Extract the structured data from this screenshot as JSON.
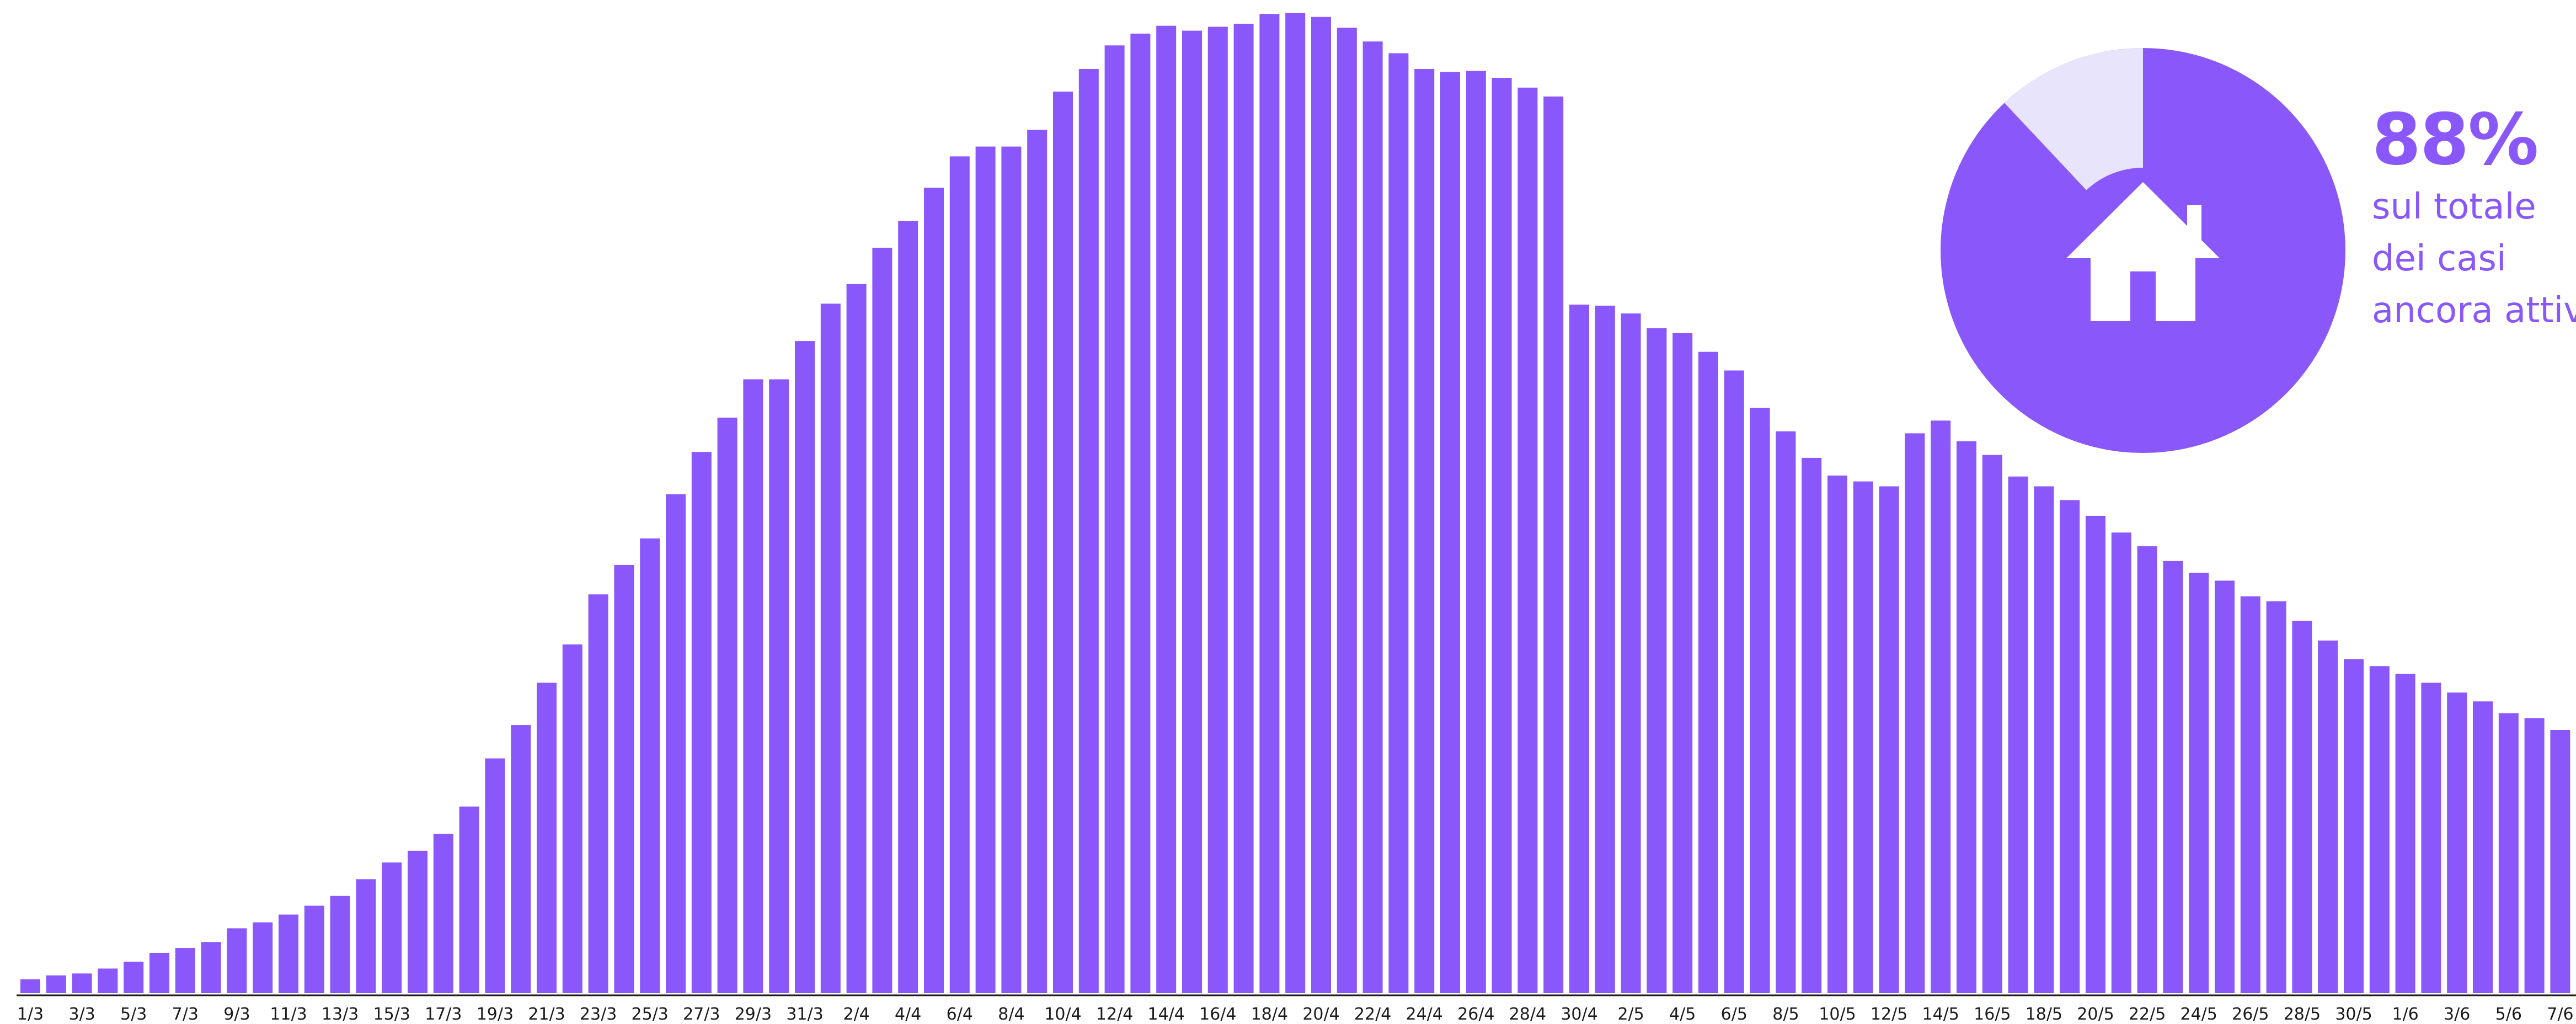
{
  "chart_data": {
    "type": "bar",
    "title": "",
    "xlabel": "",
    "ylabel": "",
    "color": "#8957fa",
    "axis_color": "#1a1a1a",
    "ylim": [
      0,
      1
    ],
    "categories": [
      "1/3",
      "2/3",
      "3/3",
      "4/3",
      "5/3",
      "6/3",
      "7/3",
      "8/3",
      "9/3",
      "10/3",
      "11/3",
      "12/3",
      "13/3",
      "14/3",
      "15/3",
      "16/3",
      "17/3",
      "18/3",
      "19/3",
      "20/3",
      "21/3",
      "22/3",
      "23/3",
      "24/3",
      "25/3",
      "26/3",
      "27/3",
      "28/3",
      "29/3",
      "30/3",
      "31/3",
      "1/4",
      "2/4",
      "3/4",
      "4/4",
      "5/4",
      "6/4",
      "7/4",
      "8/4",
      "9/4",
      "10/4",
      "11/4",
      "12/4",
      "13/4",
      "14/4",
      "15/4",
      "16/4",
      "17/4",
      "18/4",
      "19/4",
      "20/4",
      "21/4",
      "22/4",
      "23/4",
      "24/4",
      "25/4",
      "26/4",
      "27/4",
      "28/4",
      "29/4",
      "30/4",
      "1/5",
      "2/5",
      "3/5",
      "4/5",
      "5/5",
      "6/5",
      "7/5",
      "8/5",
      "9/5",
      "10/5",
      "11/5",
      "12/5",
      "13/5",
      "14/5",
      "15/5",
      "16/5",
      "17/5",
      "18/5",
      "19/5",
      "20/5",
      "21/5",
      "22/5",
      "23/5",
      "24/5",
      "25/5",
      "26/5",
      "27/5",
      "28/5",
      "29/5",
      "30/5",
      "31/5",
      "1/6",
      "2/6",
      "3/6",
      "4/6",
      "5/6",
      "6/6",
      "7/6",
      "8/6"
    ],
    "tick_labels": [
      "1/3",
      "3/3",
      "5/3",
      "7/3",
      "9/3",
      "11/3",
      "13/3",
      "15/3",
      "17/3",
      "19/3",
      "21/3",
      "23/3",
      "25/3",
      "27/3",
      "29/3",
      "31/3",
      "2/4",
      "4/4",
      "6/4",
      "8/4",
      "10/4",
      "12/4",
      "14/4",
      "16/4",
      "18/4",
      "20/4",
      "22/4",
      "24/4",
      "26/4",
      "28/4",
      "30/4",
      "2/5",
      "4/5",
      "6/5",
      "8/5",
      "10/5",
      "12/5",
      "14/5",
      "16/5",
      "18/5",
      "20/5",
      "22/5",
      "24/5",
      "26/5",
      "28/5",
      "30/5",
      "1/6",
      "3/6",
      "5/6",
      "7/6"
    ],
    "values": [
      0.014,
      0.018,
      0.02,
      0.025,
      0.032,
      0.041,
      0.046,
      0.052,
      0.066,
      0.072,
      0.08,
      0.089,
      0.099,
      0.116,
      0.133,
      0.145,
      0.162,
      0.19,
      0.239,
      0.273,
      0.316,
      0.355,
      0.406,
      0.436,
      0.463,
      0.508,
      0.551,
      0.586,
      0.625,
      0.625,
      0.664,
      0.702,
      0.722,
      0.759,
      0.786,
      0.82,
      0.852,
      0.862,
      0.862,
      0.879,
      0.918,
      0.941,
      0.965,
      0.977,
      0.985,
      0.98,
      0.984,
      0.987,
      0.997,
      0.998,
      0.994,
      0.983,
      0.969,
      0.957,
      0.941,
      0.938,
      0.939,
      0.932,
      0.922,
      0.913,
      0.701,
      0.7,
      0.692,
      0.677,
      0.672,
      0.653,
      0.634,
      0.596,
      0.572,
      0.545,
      0.527,
      0.521,
      0.516,
      0.57,
      0.583,
      0.562,
      0.548,
      0.526,
      0.516,
      0.502,
      0.486,
      0.469,
      0.455,
      0.44,
      0.428,
      0.42,
      0.404,
      0.399,
      0.379,
      0.359,
      0.34,
      0.333,
      0.325,
      0.316,
      0.306,
      0.297,
      0.285,
      0.28,
      0.268,
      0.261
    ]
  },
  "donut": {
    "percent": 0.88,
    "main_color": "#8957fa",
    "light_color": "#e8e4fc",
    "icon": "house-icon"
  },
  "stat": {
    "value": "88%",
    "line1": "sul totale",
    "line2": "dei casi",
    "line3": "ancora attivi"
  }
}
